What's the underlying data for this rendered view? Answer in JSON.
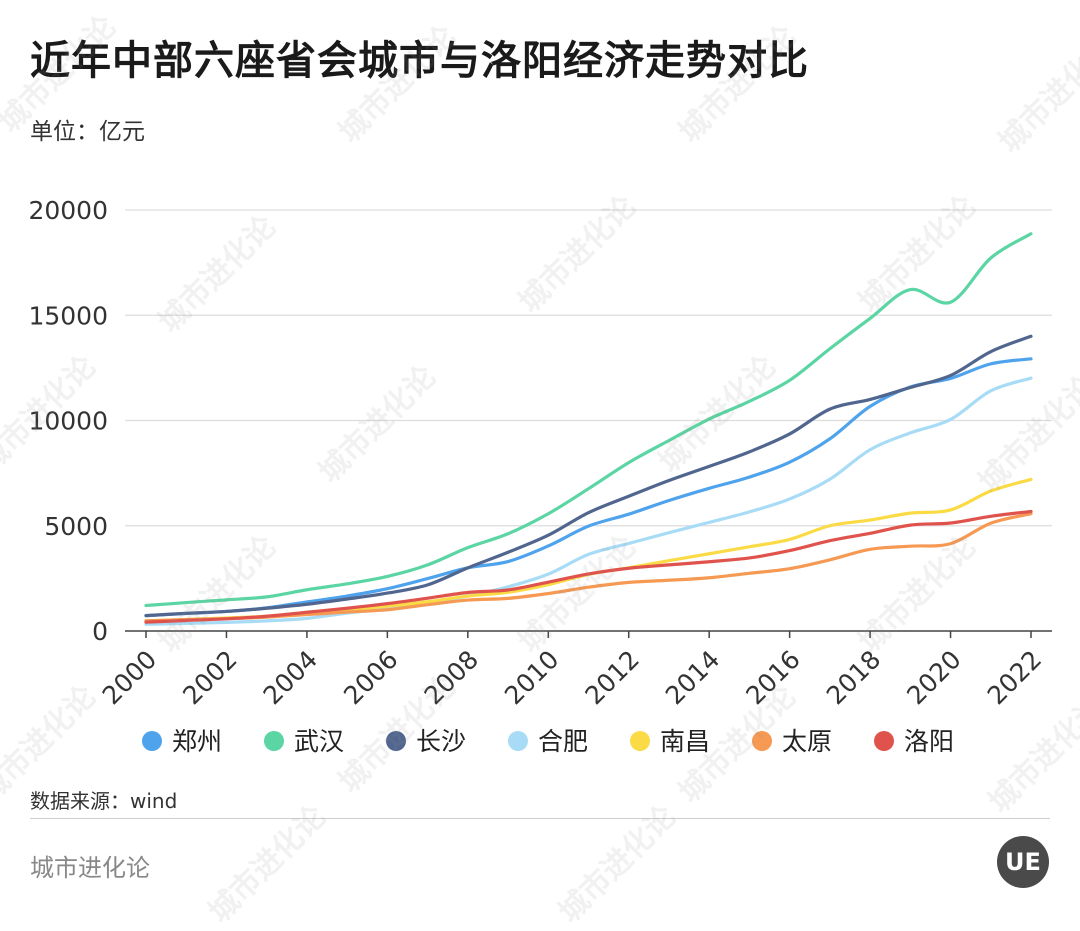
{
  "title": "近年中部六座省会城市与洛阳经济走势对比",
  "unit_label": "单位：亿元",
  "source_label": "数据来源：wind",
  "brand": "城市进化论",
  "logo_text": "UE",
  "watermark_text": "城市进化论",
  "chart_data": {
    "type": "line",
    "title": "近年中部六座省会城市与洛阳经济走势对比",
    "ylabel": "亿元",
    "ylim": [
      0,
      20000
    ],
    "yticks": [
      0,
      5000,
      10000,
      15000,
      20000
    ],
    "x": [
      2000,
      2001,
      2002,
      2003,
      2004,
      2005,
      2006,
      2007,
      2008,
      2009,
      2010,
      2011,
      2012,
      2013,
      2014,
      2015,
      2016,
      2017,
      2018,
      2019,
      2020,
      2021,
      2022
    ],
    "xtick_labels": [
      "2000",
      "2002",
      "2004",
      "2006",
      "2008",
      "2010",
      "2012",
      "2014",
      "2016",
      "2018",
      "2020",
      "2022"
    ],
    "grid": true,
    "legend_position": "bottom",
    "series": [
      {
        "name": "郑州",
        "color": "#4fa3ec",
        "values": [
          730,
          830,
          930,
          1100,
          1380,
          1660,
          2010,
          2490,
          3000,
          3300,
          4040,
          4980,
          5550,
          6200,
          6780,
          7310,
          8020,
          9130,
          10670,
          11590,
          12000,
          12690,
          12930
        ]
      },
      {
        "name": "武汉",
        "color": "#5bd5a3",
        "values": [
          1210,
          1350,
          1480,
          1620,
          1960,
          2240,
          2590,
          3140,
          3960,
          4620,
          5570,
          6760,
          8000,
          9050,
          10070,
          10910,
          11910,
          13410,
          14850,
          16220,
          15620,
          17720,
          18870
        ]
      },
      {
        "name": "长沙",
        "color": "#51668f",
        "values": [
          730,
          840,
          930,
          1080,
          1270,
          1520,
          1800,
          2190,
          3000,
          3740,
          4550,
          5620,
          6400,
          7150,
          7820,
          8510,
          9360,
          10540,
          11000,
          11570,
          12140,
          13270,
          14000
        ]
      },
      {
        "name": "合肥",
        "color": "#a8dcf6",
        "values": [
          320,
          360,
          410,
          480,
          600,
          850,
          1060,
          1330,
          1660,
          2100,
          2700,
          3640,
          4160,
          4670,
          5160,
          5660,
          6270,
          7210,
          8610,
          9410,
          10050,
          11410,
          12010
        ]
      },
      {
        "name": "南昌",
        "color": "#fadb45",
        "values": [
          480,
          550,
          620,
          700,
          860,
          1000,
          1180,
          1390,
          1660,
          1840,
          2200,
          2690,
          3000,
          3340,
          3670,
          4000,
          4350,
          5000,
          5270,
          5600,
          5750,
          6650,
          7200
        ]
      },
      {
        "name": "太原",
        "color": "#f69953",
        "values": [
          480,
          540,
          590,
          660,
          780,
          900,
          1010,
          1250,
          1470,
          1550,
          1780,
          2080,
          2310,
          2410,
          2530,
          2740,
          2960,
          3380,
          3880,
          4030,
          4150,
          5120,
          5570
        ]
      },
      {
        "name": "洛阳",
        "color": "#e0534c",
        "values": [
          420,
          500,
          580,
          700,
          890,
          1080,
          1300,
          1560,
          1830,
          1950,
          2320,
          2710,
          2980,
          3140,
          3290,
          3470,
          3820,
          4290,
          4640,
          5030,
          5130,
          5450,
          5680
        ]
      }
    ]
  }
}
